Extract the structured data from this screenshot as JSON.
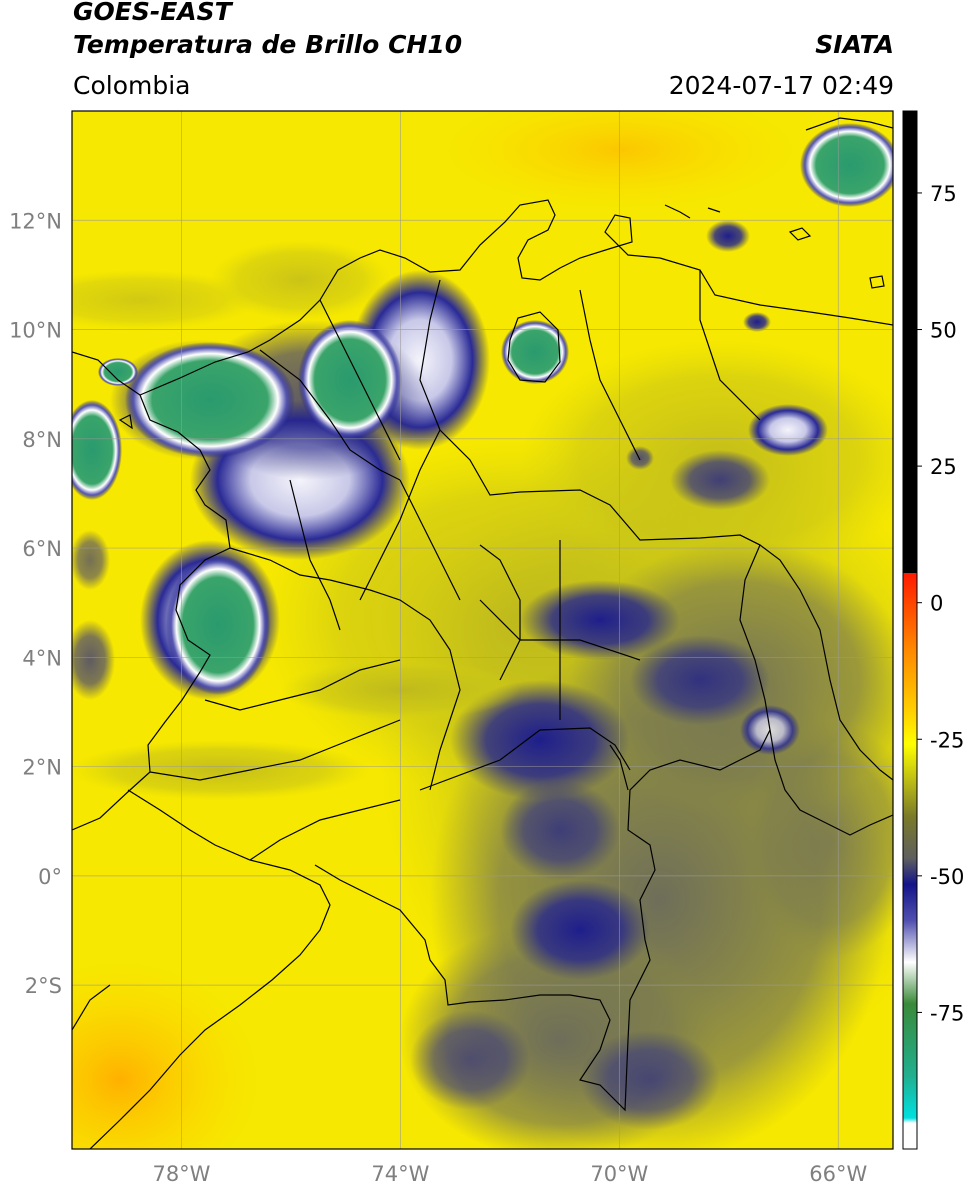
{
  "header": {
    "line1": "GOES-EAST",
    "line2": "Temperatura de Brillo CH10",
    "brand": "SIATA",
    "region": "Colombia",
    "datetime": "2024-07-17 02:49"
  },
  "map": {
    "lat_ticks": [
      {
        "value": 12,
        "label": "12°N"
      },
      {
        "value": 10,
        "label": "10°N"
      },
      {
        "value": 8,
        "label": "8°N"
      },
      {
        "value": 6,
        "label": "6°N"
      },
      {
        "value": 4,
        "label": "4°N"
      },
      {
        "value": 2,
        "label": "2°N"
      },
      {
        "value": 0,
        "label": "0°"
      },
      {
        "value": -2,
        "label": "2°S"
      }
    ],
    "lon_ticks": [
      {
        "value": -78,
        "label": "78°W"
      },
      {
        "value": -74,
        "label": "74°W"
      },
      {
        "value": -70,
        "label": "70°W"
      },
      {
        "value": -66,
        "label": "66°W"
      }
    ],
    "extent": {
      "lon_min": -80,
      "lon_max": -65,
      "lat_min": -5,
      "lat_max": 14
    }
  },
  "colorbar": {
    "ticks": [
      {
        "value": 75,
        "label": "75"
      },
      {
        "value": 50,
        "label": "50"
      },
      {
        "value": 25,
        "label": "25"
      },
      {
        "value": 0,
        "label": "0"
      },
      {
        "value": -25,
        "label": "-25"
      },
      {
        "value": -50,
        "label": "-50"
      },
      {
        "value": -75,
        "label": "-75"
      }
    ]
  }
}
